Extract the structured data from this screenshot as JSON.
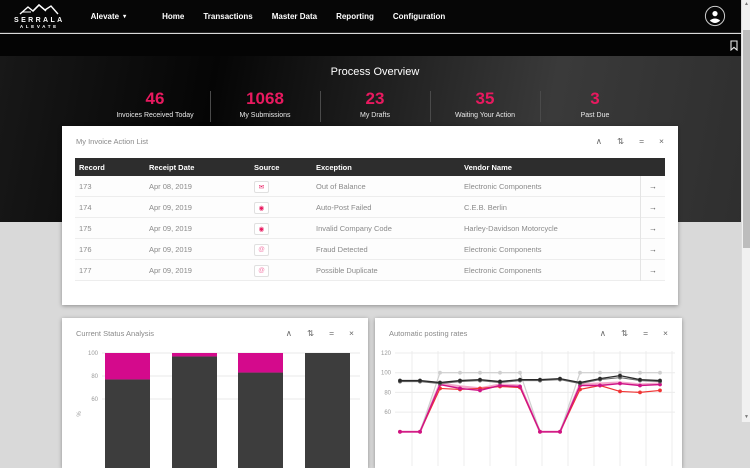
{
  "brand": {
    "name_top": "SERRALA",
    "name_bottom": "ALEVATE"
  },
  "nav": {
    "app_selector": {
      "label": "Alevate",
      "caret": "▾"
    },
    "items": [
      {
        "label": "Home"
      },
      {
        "label": "Transactions"
      },
      {
        "label": "Master Data"
      },
      {
        "label": "Reporting"
      },
      {
        "label": "Configuration"
      }
    ]
  },
  "icons": {
    "collapse": "∧",
    "expand": "⇅",
    "menu": "=",
    "close": "×",
    "row_action": "→",
    "scrollbar_up": "▲",
    "scrollbar_down": "▼"
  },
  "colors": {
    "accent": "#e8195f",
    "magenta": "#d40a8c",
    "dark_bar": "#3d3d3d"
  },
  "overview": {
    "title": "Process Overview",
    "stats": [
      {
        "value": "46",
        "label": "Invoices Received Today"
      },
      {
        "value": "1068",
        "label": "My Submissions"
      },
      {
        "value": "23",
        "label": "My Drafts"
      },
      {
        "value": "35",
        "label": "Waiting Your Action"
      },
      {
        "value": "3",
        "label": "Past Due"
      }
    ]
  },
  "action_list": {
    "title": "My Invoice Action List",
    "columns": [
      "Record",
      "Receipt Date",
      "Source",
      "Exception",
      "Vendor Name"
    ],
    "rows": [
      {
        "record": "173",
        "receipt_date": "Apr 08, 2019",
        "source": "scan",
        "source_glyph": "✉",
        "source_color": "#e8195f",
        "exception": "Out of Balance",
        "vendor": "Electronic Components"
      },
      {
        "record": "174",
        "receipt_date": "Apr 09, 2019",
        "source": "alert",
        "source_glyph": "◉",
        "source_color": "#e8195f",
        "exception": "Auto-Post Failed",
        "vendor": "C.E.B. Berlin"
      },
      {
        "record": "175",
        "receipt_date": "Apr 09, 2019",
        "source": "alert",
        "source_glyph": "◉",
        "source_color": "#e8195f",
        "exception": "Invalid Company Code",
        "vendor": "Harley-Davidson Motorcycle"
      },
      {
        "record": "176",
        "receipt_date": "Apr 09, 2019",
        "source": "email",
        "source_glyph": "@",
        "source_color": "#f27daa",
        "exception": "Fraud Detected",
        "vendor": "Electronic Components"
      },
      {
        "record": "177",
        "receipt_date": "Apr 09, 2019",
        "source": "email",
        "source_glyph": "@",
        "source_color": "#f27daa",
        "exception": "Possible Duplicate",
        "vendor": "Electronic Components"
      }
    ]
  },
  "chart_data": [
    {
      "id": "current_status_analysis",
      "type": "bar",
      "title": "Current Status Analysis",
      "stacked": true,
      "categories": [
        "",
        "",
        "",
        ""
      ],
      "series": [
        {
          "name": "dark-segment",
          "color": "#3d3d3d",
          "values": [
            77,
            97,
            83,
            100
          ]
        },
        {
          "name": "magenta-segment",
          "color": "#d40a8c",
          "values": [
            23,
            3,
            17,
            0
          ]
        }
      ],
      "ylabel": "%",
      "yticks": [
        100,
        80,
        60
      ],
      "ylim": [
        0,
        100
      ],
      "grid": true
    },
    {
      "id": "automatic_posting_rates",
      "type": "line",
      "title": "Automatic posting rates",
      "x": [
        1,
        2,
        3,
        4,
        5,
        6,
        7,
        8,
        9,
        10,
        11,
        12,
        13,
        14
      ],
      "yticks": [
        120,
        100,
        80,
        60
      ],
      "ylim": [
        40,
        120
      ],
      "grid": true,
      "legend_position": "hidden",
      "series": [
        {
          "name": "s1-light-pink",
          "color": "#f2aacb",
          "width": 2.4,
          "dots": false,
          "values": [
            40,
            40,
            89,
            86,
            84,
            88,
            87,
            40,
            40,
            88,
            89,
            90,
            88,
            89
          ]
        },
        {
          "name": "s2-light-gray",
          "color": "#cfcfcf",
          "width": 1.2,
          "dots": true,
          "values": [
            40,
            40,
            100,
            100,
            100,
            100,
            100,
            40,
            40,
            100,
            100,
            100,
            100,
            100
          ]
        },
        {
          "name": "s3-red",
          "color": "#f03434",
          "width": 1.2,
          "dots": true,
          "values": [
            40,
            40,
            84,
            83,
            84,
            86,
            85,
            40,
            40,
            83,
            87,
            81,
            80,
            82
          ]
        },
        {
          "name": "s4-magenta",
          "color": "#cf1287",
          "width": 1.4,
          "dots": true,
          "values": [
            40,
            40,
            88,
            84,
            82,
            87,
            86,
            40,
            40,
            87,
            87,
            89,
            87,
            88
          ]
        },
        {
          "name": "s5-dark-gray",
          "color": "#6b6b6b",
          "width": 1.1,
          "dots": true,
          "values": [
            91,
            91,
            89,
            91,
            92,
            90,
            92,
            92,
            93,
            89,
            93,
            95,
            92,
            91
          ]
        },
        {
          "name": "s6-black",
          "color": "#2a2a2a",
          "width": 1.3,
          "dots": true,
          "values": [
            92,
            92,
            90,
            92,
            93,
            91,
            93,
            93,
            94,
            90,
            94,
            97,
            93,
            92
          ]
        }
      ]
    }
  ]
}
